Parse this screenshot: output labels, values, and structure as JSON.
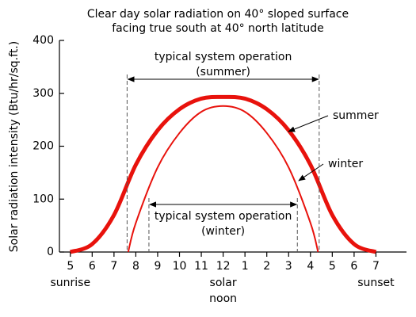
{
  "chart_data": {
    "type": "line",
    "title": [
      "Clear day solar radiation on 40° sloped surface",
      "facing true south at 40° north latitude"
    ],
    "y_label": "Solar radiation intensity (Btu/hr/sq.ft.)",
    "xlim": [
      4.5,
      20.4
    ],
    "xticks": [
      5,
      6,
      7,
      8,
      9,
      10,
      11,
      12,
      {
        "value": 13,
        "label": "1"
      },
      {
        "value": 14,
        "label": "2"
      },
      {
        "value": 15,
        "label": "3"
      },
      {
        "value": 16,
        "label": "4"
      },
      {
        "value": 17,
        "label": "5"
      },
      {
        "value": 18,
        "label": "6"
      },
      {
        "value": 19,
        "label": "7"
      }
    ],
    "ylim": [
      0,
      400
    ],
    "yticks": [
      0,
      100,
      200,
      300,
      400
    ],
    "grid": false,
    "series": [
      {
        "name": "summer",
        "color": "#e8120c",
        "x": [
          5,
          6,
          7,
          8,
          9,
          10,
          11,
          12,
          13,
          14,
          15,
          16,
          17,
          18,
          19
        ],
        "values": [
          0,
          15,
          70,
          165,
          230,
          270,
          290,
          293,
          290,
          270,
          230,
          165,
          70,
          15,
          0
        ]
      },
      {
        "name": "winter",
        "color": "#e8120c",
        "x": [
          7.65,
          8,
          9,
          10,
          11,
          12,
          13,
          14,
          15,
          16,
          16.35
        ],
        "values": [
          0,
          55,
          160,
          225,
          265,
          276,
          265,
          225,
          160,
          55,
          0
        ]
      }
    ],
    "ranges": [
      {
        "label": [
          "typical system operation",
          "(summer)"
        ],
        "start": 7.6,
        "end": 16.4
      },
      {
        "label": [
          "typical system operation",
          "(winter)"
        ],
        "start": 8.6,
        "end": 15.4
      }
    ],
    "x_notes": [
      {
        "x": 5,
        "label": [
          "sunrise"
        ],
        "color": "#000000"
      },
      {
        "x": 12,
        "label": [
          "solar",
          "noon"
        ],
        "color": "#e0267a"
      },
      {
        "x": 19,
        "label": [
          "sunset"
        ],
        "color": "#000000"
      }
    ]
  }
}
